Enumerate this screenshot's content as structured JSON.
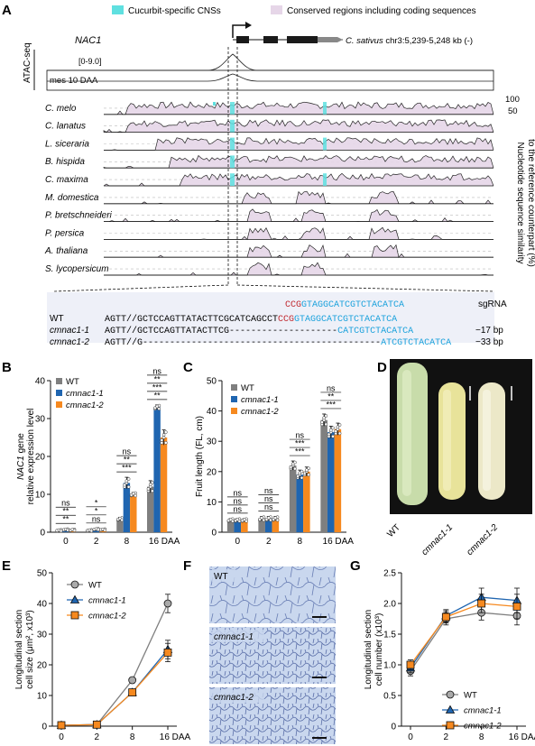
{
  "panel_labels": {
    "A": "A",
    "B": "B",
    "C": "C",
    "D": "D",
    "E": "E",
    "F": "F",
    "G": "G"
  },
  "panelA": {
    "legend_cns": "Cucurbit-specific CNSs",
    "legend_conserved": "Conserved regions including coding sequences",
    "gene": "NAC1",
    "coords_species": "C. sativus",
    "coords": "chr3:5,239-5,248 kb (-)",
    "atac_label": "ATAC-seq",
    "track_range": "[0-9.0]",
    "track_label": "mes 10 DAA",
    "species": [
      "C. melo",
      "C. lanatus",
      "L. siceraria",
      "B. hispida",
      "C. maxima",
      "M. domestica",
      "P. bretschneideri",
      "P. persica",
      "A. thaliana",
      "S. lycopersicum"
    ],
    "scale_top": "100",
    "scale_mid": "50",
    "right_label_1": "Nucleotide sequence similarity",
    "right_label_2": "to the reference counterpart (%)",
    "colors": {
      "cns": "#5fe0e0",
      "conserved": "#e6d6e8",
      "pam": "#c0272d",
      "sgrna": "#1aa1dc"
    },
    "alignment": [
      {
        "name": "WT",
        "seq": "AGTT//GCTCCAGTTATACTTCGCATCAGCCT",
        "pam": "CCG",
        "guide": "GTAGGCATCGTCTACATCA",
        "note": "sgRNA"
      },
      {
        "name": "cmnac1-1",
        "seq": "AGTT//GCTCCAGTTATACTTCG",
        "dashes": "--------------------",
        "guide": "CATCGTCTACATCA",
        "note": "−17 bp"
      },
      {
        "name": "cmnac1-2",
        "seq": "AGTT//G",
        "dashes": "--------------------------------------------",
        "guide": "ATCGTCTACATCA",
        "note": "−33 bp"
      }
    ],
    "wt_pam_top": "CCG",
    "wt_guide_top": "GTAGGCATCGTCTACATCA"
  },
  "chart_data": [
    {
      "id": "B",
      "type": "bar",
      "categories": [
        "0",
        "2",
        "8",
        "16 DAA"
      ],
      "series": [
        {
          "name": "WT",
          "values": [
            0.5,
            0.5,
            3.5,
            12
          ],
          "color": "#7f7f7f"
        },
        {
          "name": "cmnac1-1",
          "values": [
            0.7,
            0.8,
            13,
            33
          ],
          "color": "#1f65b0"
        },
        {
          "name": "cmnac1-2",
          "values": [
            0.6,
            0.7,
            10,
            25
          ],
          "color": "#f6891f"
        }
      ],
      "errors": [
        [
          0.2,
          0.2,
          0.4,
          1.6
        ],
        [
          0.2,
          0.2,
          1.5,
          0.6
        ],
        [
          0.2,
          0.2,
          0.5,
          2
        ]
      ],
      "ylabel_1": "NAC1 gene",
      "ylabel_2": "relative expression level",
      "ylim": [
        0,
        40
      ],
      "yticks": [
        "0",
        "10",
        "20",
        "30",
        "40"
      ],
      "significance": [
        [
          "**",
          "**",
          "ns"
        ],
        [
          "ns",
          "*",
          "*"
        ],
        [
          "***",
          "**",
          "ns"
        ],
        [
          "**",
          "***",
          "**",
          "ns"
        ]
      ]
    },
    {
      "id": "C",
      "type": "bar",
      "categories": [
        "0",
        "2",
        "8",
        "16 DAA"
      ],
      "series": [
        {
          "name": "WT",
          "values": [
            4,
            4.5,
            22,
            37
          ],
          "color": "#7f7f7f"
        },
        {
          "name": "cmnac1-1",
          "values": [
            4,
            4.5,
            19,
            33
          ],
          "color": "#1f65b0"
        },
        {
          "name": "cmnac1-2",
          "values": [
            4,
            4.5,
            20,
            34
          ],
          "color": "#f6891f"
        }
      ],
      "errors": [
        [
          0.5,
          0.7,
          1.5,
          2
        ],
        [
          0.5,
          0.7,
          1.5,
          2
        ],
        [
          0.5,
          0.7,
          1.5,
          2
        ]
      ],
      "ylabel": "Fruit length (FL, cm)",
      "ylim": [
        0,
        50
      ],
      "yticks": [
        "0",
        "10",
        "20",
        "30",
        "40",
        "50"
      ],
      "significance": [
        [
          "ns",
          "ns",
          "ns"
        ],
        [
          "ns",
          "ns",
          "ns"
        ],
        [
          "***",
          "***",
          "ns"
        ],
        [
          "***",
          "**",
          "ns"
        ]
      ]
    },
    {
      "id": "E",
      "type": "line",
      "x": [
        "0",
        "2",
        "8",
        "16 DAA"
      ],
      "series": [
        {
          "name": "WT",
          "values": [
            0.3,
            0.5,
            15,
            40
          ],
          "errors": [
            0.2,
            0.2,
            0.8,
            3
          ],
          "color": "#7f7f7f",
          "marker": "circle"
        },
        {
          "name": "cmnac1-1",
          "values": [
            0.3,
            0.5,
            11,
            25
          ],
          "errors": [
            0.2,
            0.2,
            0.8,
            3
          ],
          "color": "#1f65b0",
          "marker": "triangle"
        },
        {
          "name": "cmnac1-2",
          "values": [
            0.3,
            0.5,
            11,
            24
          ],
          "errors": [
            0.2,
            0.2,
            0.8,
            3
          ],
          "color": "#f6891f",
          "marker": "square"
        }
      ],
      "ylabel_1": "Longitudinal section",
      "ylabel_2": "cell size (μm², x10³)",
      "ylim": [
        0,
        50
      ],
      "yticks": [
        "0",
        "10",
        "20",
        "30",
        "40",
        "50"
      ]
    },
    {
      "id": "G",
      "type": "line",
      "x": [
        "0",
        "2",
        "8",
        "16 DAA"
      ],
      "series": [
        {
          "name": "WT",
          "values": [
            0.9,
            1.75,
            1.85,
            1.8
          ],
          "errors": [
            0.08,
            0.1,
            0.12,
            0.15
          ],
          "color": "#7f7f7f",
          "marker": "circle"
        },
        {
          "name": "cmnac1-1",
          "values": [
            0.95,
            1.8,
            2.1,
            2.05
          ],
          "errors": [
            0.08,
            0.1,
            0.15,
            0.2
          ],
          "color": "#1f65b0",
          "marker": "triangle"
        },
        {
          "name": "cmnac1-2",
          "values": [
            1.0,
            1.78,
            2.0,
            1.95
          ],
          "errors": [
            0.08,
            0.1,
            0.15,
            0.2
          ],
          "color": "#f6891f",
          "marker": "square"
        }
      ],
      "ylabel_1": "Longitudinal section",
      "ylabel_2": "cell number (x10³)",
      "ylim": [
        0,
        2.5
      ],
      "yticks": [
        "0",
        "0.5",
        "1.0",
        "1.5",
        "2.0",
        "2.5"
      ]
    }
  ],
  "panelD": {
    "labels": [
      "WT",
      "cmnac1-1",
      "cmnac1-2"
    ]
  },
  "panelF": {
    "labels": [
      "WT",
      "cmnac1-1",
      "cmnac1-2"
    ]
  }
}
